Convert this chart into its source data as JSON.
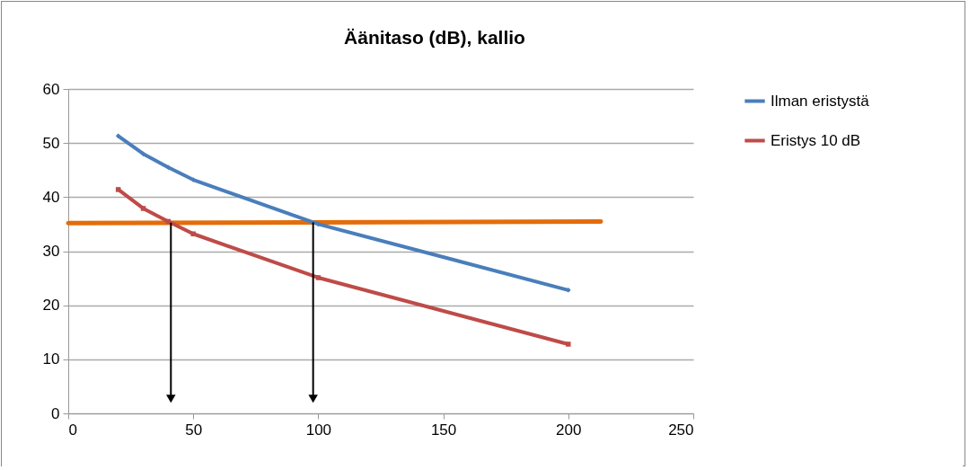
{
  "chart_data": {
    "type": "line",
    "title": "Äänitaso (dB), kallio",
    "x": [
      20,
      30,
      40,
      50,
      100,
      200
    ],
    "series": [
      {
        "name": "Ilman eristystä",
        "color": "#4a7ebb",
        "marker": "diamond",
        "values": [
          51.3,
          48.0,
          45.5,
          43.2,
          35.0,
          22.8
        ]
      },
      {
        "name": "Eristys  10 dB",
        "color": "#be4b48",
        "marker": "square",
        "values": [
          41.4,
          37.9,
          35.5,
          33.2,
          25.1,
          12.8
        ]
      },
      {
        "color": "#e46c0a",
        "marker": "none",
        "x": [
          0,
          213
        ],
        "values": [
          35.2,
          35.5
        ]
      }
    ],
    "xlim": [
      0,
      250
    ],
    "xticks": [
      0,
      50,
      100,
      150,
      200,
      250
    ],
    "ylim": [
      0,
      60
    ],
    "yticks": [
      0,
      10,
      20,
      30,
      40,
      50,
      60
    ],
    "grid": "y",
    "legend": "right",
    "line_style": "solid"
  }
}
